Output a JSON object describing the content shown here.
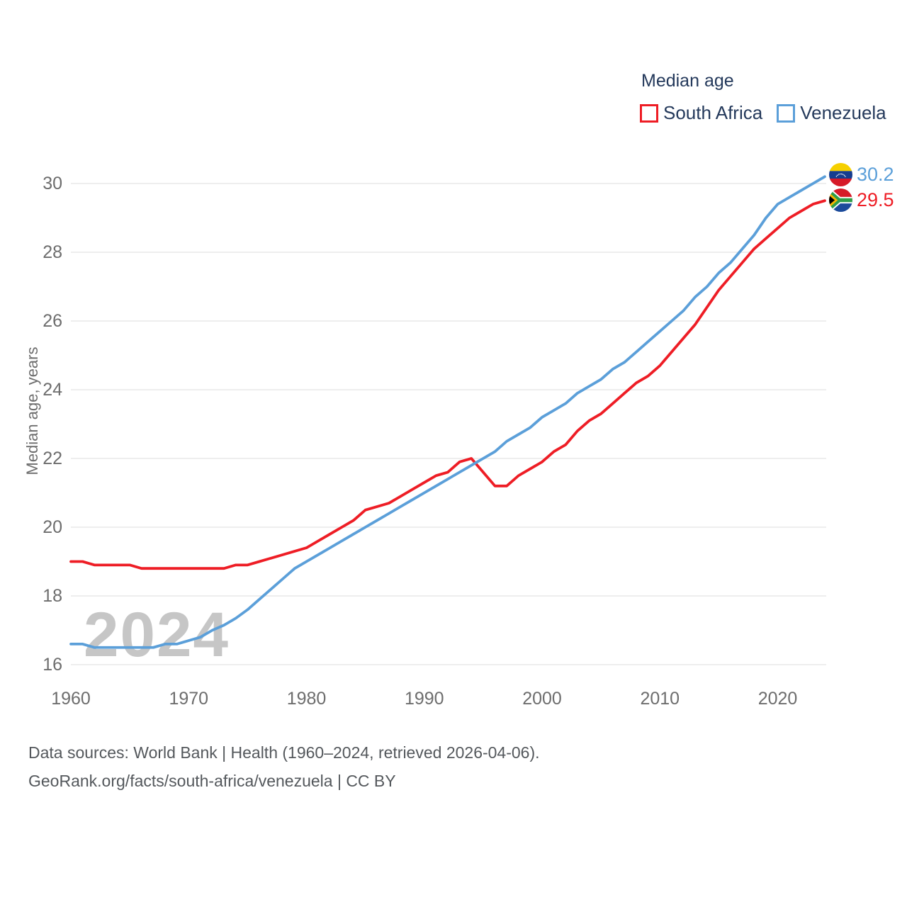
{
  "legend": {
    "title": "Median age",
    "items": [
      {
        "label": "South Africa",
        "color": "#ee1d25"
      },
      {
        "label": "Venezuela",
        "color": "#5b9fd9"
      }
    ]
  },
  "end_labels": [
    {
      "value": "30.2",
      "country": "Venezuela",
      "color": "#5b9fd9"
    },
    {
      "value": "29.5",
      "country": "South Africa",
      "color": "#ee1d25"
    }
  ],
  "watermark": "2024",
  "footer": {
    "line1": "Data sources: World Bank | Health (1960–2024, retrieved 2026-04-06).",
    "line2": "GeoRank.org/facts/south-africa/venezuela | CC BY"
  },
  "chart_data": {
    "type": "line",
    "title": "Median age",
    "xlabel": "",
    "ylabel": "Median age, years",
    "xlim": [
      1960,
      2024
    ],
    "ylim": [
      15.8,
      30.6
    ],
    "grid": "horizontal",
    "legend_position": "top-right",
    "xticks": [
      1960,
      1970,
      1980,
      1990,
      2000,
      2010,
      2020
    ],
    "yticks": [
      16,
      18,
      20,
      22,
      24,
      26,
      28,
      30
    ],
    "x": [
      1960,
      1961,
      1962,
      1963,
      1964,
      1965,
      1966,
      1967,
      1968,
      1969,
      1970,
      1971,
      1972,
      1973,
      1974,
      1975,
      1976,
      1977,
      1978,
      1979,
      1980,
      1981,
      1982,
      1983,
      1984,
      1985,
      1986,
      1987,
      1988,
      1989,
      1990,
      1991,
      1992,
      1993,
      1994,
      1995,
      1996,
      1997,
      1998,
      1999,
      2000,
      2001,
      2002,
      2003,
      2004,
      2005,
      2006,
      2007,
      2008,
      2009,
      2010,
      2011,
      2012,
      2013,
      2014,
      2015,
      2016,
      2017,
      2018,
      2019,
      2020,
      2021,
      2022,
      2023,
      2024
    ],
    "series": [
      {
        "name": "South Africa",
        "color": "#ee1d25",
        "end_value": 29.5,
        "values": [
          19.0,
          19.0,
          18.9,
          18.9,
          18.9,
          18.9,
          18.8,
          18.8,
          18.8,
          18.8,
          18.8,
          18.8,
          18.8,
          18.8,
          18.9,
          18.9,
          19.0,
          19.1,
          19.2,
          19.3,
          19.4,
          19.6,
          19.8,
          20.0,
          20.2,
          20.5,
          20.6,
          20.7,
          20.9,
          21.1,
          21.3,
          21.5,
          21.6,
          21.9,
          22.0,
          21.6,
          21.2,
          21.2,
          21.5,
          21.7,
          21.9,
          22.2,
          22.4,
          22.8,
          23.1,
          23.3,
          23.6,
          23.9,
          24.2,
          24.4,
          24.7,
          25.1,
          25.5,
          25.9,
          26.4,
          26.9,
          27.3,
          27.7,
          28.1,
          28.4,
          28.7,
          29.0,
          29.2,
          29.4,
          29.5
        ]
      },
      {
        "name": "Venezuela",
        "color": "#5b9fd9",
        "end_value": 30.2,
        "values": [
          16.6,
          16.6,
          16.5,
          16.5,
          16.5,
          16.5,
          16.5,
          16.5,
          16.6,
          16.6,
          16.7,
          16.8,
          17.0,
          17.15,
          17.35,
          17.6,
          17.9,
          18.2,
          18.5,
          18.8,
          19.0,
          19.2,
          19.4,
          19.6,
          19.8,
          20.0,
          20.2,
          20.4,
          20.6,
          20.8,
          21.0,
          21.2,
          21.4,
          21.6,
          21.8,
          22.0,
          22.2,
          22.5,
          22.7,
          22.9,
          23.2,
          23.4,
          23.6,
          23.9,
          24.1,
          24.3,
          24.6,
          24.8,
          25.1,
          25.4,
          25.7,
          26.0,
          26.3,
          26.7,
          27.0,
          27.4,
          27.7,
          28.1,
          28.5,
          29.0,
          29.4,
          29.6,
          29.8,
          30.0,
          30.2
        ]
      }
    ]
  }
}
